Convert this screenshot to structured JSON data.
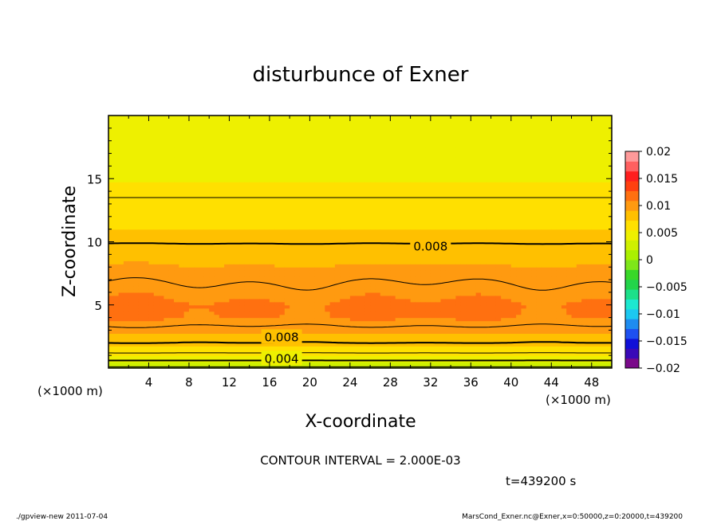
{
  "chart_data": {
    "type": "heatmap",
    "title": "disturbunce of Exner",
    "xlabel": "X-coordinate",
    "ylabel": "Z-coordinate",
    "x_unit_label": "(×1000 m)",
    "y_unit_label": "(×1000 m)",
    "xlim": [
      0,
      50
    ],
    "ylim": [
      0,
      20
    ],
    "x_ticks": [
      "4",
      "8",
      "12",
      "16",
      "20",
      "24",
      "28",
      "32",
      "36",
      "40",
      "44",
      "48"
    ],
    "y_ticks": [
      "5",
      "10",
      "15"
    ],
    "contour_interval_text": "CONTOUR INTERVAL = 2.000E-03",
    "time_text": "t=439200 s",
    "contour_labels": [
      {
        "text": "0.008",
        "x": 32,
        "z": 9.7
      },
      {
        "text": "0.008",
        "x": 17.2,
        "z": 2.5
      },
      {
        "text": "0.004",
        "x": 17.2,
        "z": 0.8
      }
    ],
    "vertical_profile_z": [
      0,
      0.3,
      0.6,
      0.9,
      1.2,
      1.6,
      2.0,
      2.5,
      3.0,
      4.0,
      5.0,
      6.0,
      7.0,
      8.0,
      9.0,
      10.0,
      11.0,
      12.0,
      13.0,
      14.0,
      15.0,
      16.0,
      17.0,
      18.0,
      19.0,
      20.0
    ],
    "vertical_profile_value": [
      0.0015,
      0.003,
      0.004,
      0.005,
      0.006,
      0.007,
      0.008,
      0.0085,
      0.0095,
      0.011,
      0.0112,
      0.0105,
      0.0098,
      0.0092,
      0.0086,
      0.0079,
      0.0073,
      0.0068,
      0.0062,
      0.0058,
      0.0054,
      0.005,
      0.0047,
      0.0045,
      0.0043,
      0.0042
    ],
    "colorbar": {
      "ticks": [
        "0.02",
        "0.015",
        "0.01",
        "0.005",
        "0",
        "−0.005",
        "−0.01",
        "−0.015",
        "−0.02"
      ],
      "range": [
        -0.02,
        0.02
      ],
      "colors": [
        "#7a0a8a",
        "#3a0ab8",
        "#1010d8",
        "#1e50f0",
        "#1e8cf0",
        "#1cc8f0",
        "#1ce8d0",
        "#1ce08a",
        "#22d44a",
        "#38d828",
        "#7ee61a",
        "#aaf000",
        "#cff000",
        "#eef000",
        "#ffe000",
        "#ffc000",
        "#ff9a10",
        "#ff7010",
        "#ff4010",
        "#ff1e1e",
        "#ff6060",
        "#ff9a9a"
      ]
    }
  },
  "footer": {
    "left": "./gpview-new  2011-07-04",
    "right": "MarsCond_Exner.nc@Exner,x=0:50000,z=0:20000,t=439200"
  }
}
